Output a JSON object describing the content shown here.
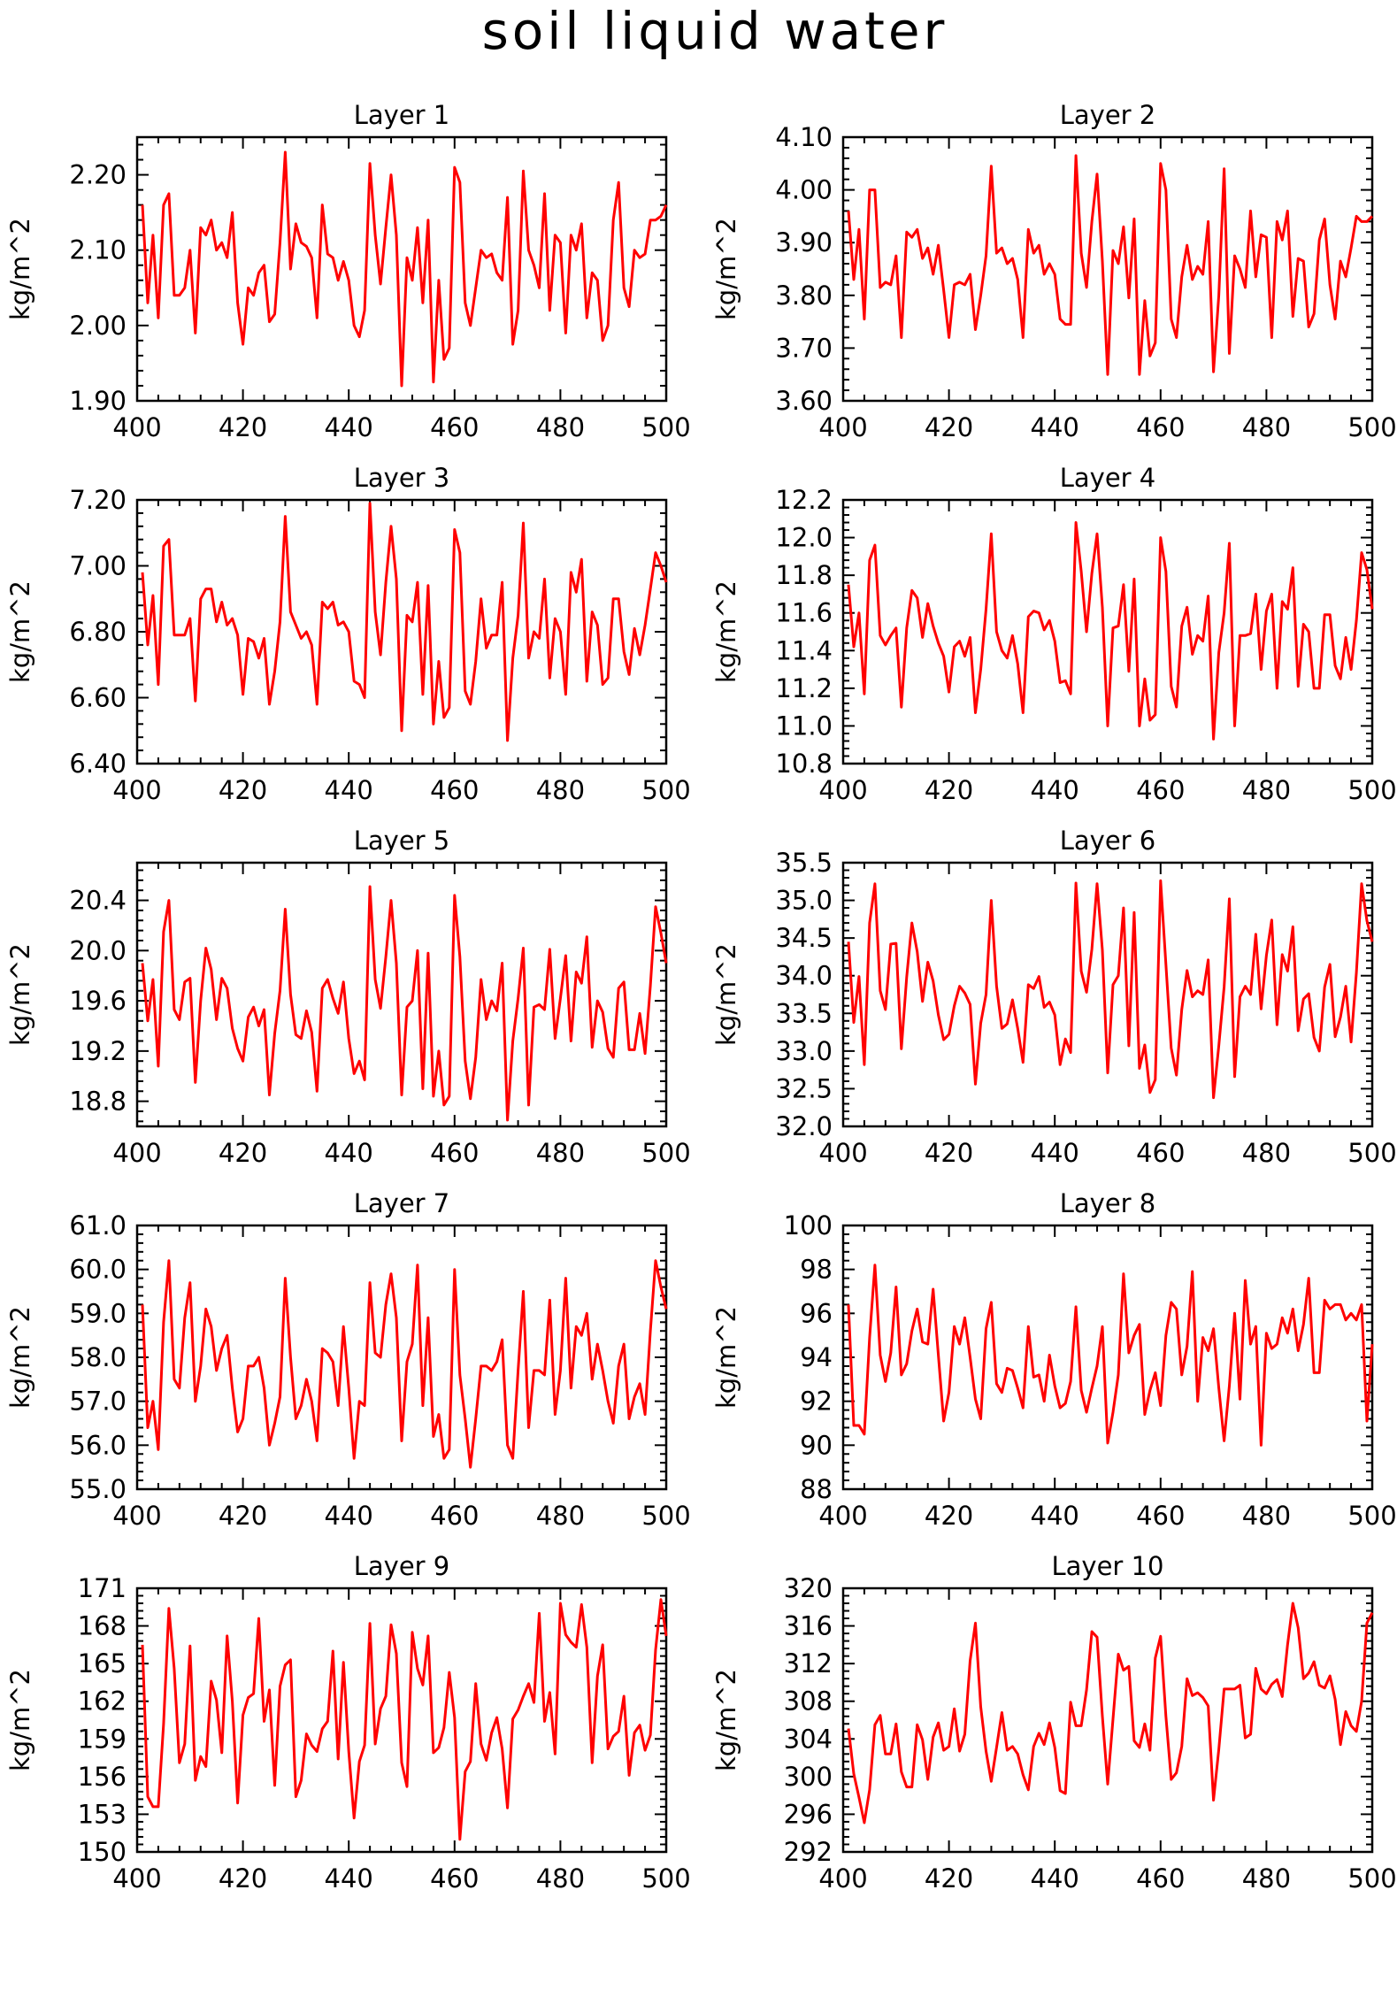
{
  "figure_title": "soil liquid water",
  "chart_data": [
    {
      "type": "line",
      "title": "Layer 1",
      "ylabel": "kg/m^2",
      "xlim": [
        400,
        500
      ],
      "x_ticks": [
        "400",
        "420",
        "440",
        "460",
        "480",
        "500"
      ],
      "ylim": [
        1.9,
        2.25
      ],
      "y_ticks": [
        "1.90",
        "2.00",
        "2.10",
        "2.20"
      ],
      "x_start": 401,
      "values": [
        2.16,
        2.03,
        2.12,
        2.01,
        2.16,
        2.175,
        2.04,
        2.04,
        2.05,
        2.1,
        1.99,
        2.13,
        2.12,
        2.14,
        2.1,
        2.11,
        2.09,
        2.15,
        2.03,
        1.975,
        2.05,
        2.04,
        2.07,
        2.08,
        2.005,
        2.015,
        2.11,
        2.23,
        2.075,
        2.135,
        2.11,
        2.105,
        2.09,
        2.01,
        2.16,
        2.095,
        2.09,
        2.06,
        2.085,
        2.06,
        2.0,
        1.985,
        2.02,
        2.215,
        2.12,
        2.055,
        2.13,
        2.2,
        2.12,
        1.92,
        2.09,
        2.06,
        2.13,
        2.03,
        2.14,
        1.925,
        2.06,
        1.955,
        1.97,
        2.21,
        2.19,
        2.03,
        2.0,
        2.05,
        2.1,
        2.09,
        2.095,
        2.07,
        2.06,
        2.17,
        1.975,
        2.02,
        2.205,
        2.1,
        2.08,
        2.05,
        2.175,
        2.02,
        2.12,
        2.11,
        1.99,
        2.12,
        2.1,
        2.135,
        2.01,
        2.07,
        2.06,
        1.98,
        2.0,
        2.14,
        2.19,
        2.05,
        2.025,
        2.1,
        2.09,
        2.095,
        2.14,
        2.14,
        2.145,
        2.16
      ]
    },
    {
      "type": "line",
      "title": "Layer 2",
      "ylabel": "kg/m^2",
      "xlim": [
        400,
        500
      ],
      "x_ticks": [
        "400",
        "420",
        "440",
        "460",
        "480",
        "500"
      ],
      "ylim": [
        3.6,
        4.1
      ],
      "y_ticks": [
        "3.60",
        "3.70",
        "3.80",
        "3.90",
        "4.00",
        "4.10"
      ],
      "x_start": 401,
      "values": [
        3.96,
        3.83,
        3.925,
        3.755,
        4.0,
        4.0,
        3.815,
        3.825,
        3.82,
        3.875,
        3.72,
        3.92,
        3.91,
        3.925,
        3.87,
        3.89,
        3.84,
        3.895,
        3.81,
        3.72,
        3.82,
        3.825,
        3.82,
        3.84,
        3.735,
        3.8,
        3.875,
        4.045,
        3.88,
        3.89,
        3.86,
        3.87,
        3.83,
        3.72,
        3.925,
        3.88,
        3.895,
        3.84,
        3.86,
        3.84,
        3.755,
        3.745,
        3.745,
        4.065,
        3.88,
        3.815,
        3.94,
        4.03,
        3.865,
        3.65,
        3.885,
        3.86,
        3.93,
        3.795,
        3.945,
        3.65,
        3.79,
        3.685,
        3.71,
        4.05,
        4.0,
        3.755,
        3.72,
        3.835,
        3.895,
        3.83,
        3.855,
        3.84,
        3.94,
        3.655,
        3.8,
        4.04,
        3.69,
        3.875,
        3.85,
        3.815,
        3.96,
        3.835,
        3.915,
        3.91,
        3.72,
        3.94,
        3.905,
        3.96,
        3.76,
        3.87,
        3.865,
        3.74,
        3.765,
        3.905,
        3.945,
        3.82,
        3.755,
        3.865,
        3.835,
        3.89,
        3.95,
        3.94,
        3.94,
        3.95
      ]
    },
    {
      "type": "line",
      "title": "Layer 3",
      "ylabel": "kg/m^2",
      "xlim": [
        400,
        500
      ],
      "x_ticks": [
        "400",
        "420",
        "440",
        "460",
        "480",
        "500"
      ],
      "ylim": [
        6.4,
        7.2
      ],
      "y_ticks": [
        "6.40",
        "6.60",
        "6.80",
        "7.00",
        "7.20"
      ],
      "x_start": 401,
      "values": [
        6.98,
        6.76,
        6.91,
        6.64,
        7.06,
        7.08,
        6.79,
        6.79,
        6.79,
        6.84,
        6.59,
        6.9,
        6.93,
        6.93,
        6.83,
        6.89,
        6.82,
        6.84,
        6.79,
        6.61,
        6.78,
        6.77,
        6.72,
        6.78,
        6.58,
        6.68,
        6.83,
        7.15,
        6.86,
        6.82,
        6.78,
        6.8,
        6.76,
        6.58,
        6.89,
        6.87,
        6.89,
        6.82,
        6.83,
        6.8,
        6.65,
        6.64,
        6.6,
        7.19,
        6.86,
        6.73,
        6.95,
        7.12,
        6.96,
        6.5,
        6.85,
        6.83,
        6.95,
        6.61,
        6.94,
        6.52,
        6.71,
        6.54,
        6.57,
        7.11,
        7.04,
        6.62,
        6.58,
        6.71,
        6.9,
        6.75,
        6.79,
        6.79,
        6.95,
        6.47,
        6.72,
        6.85,
        7.13,
        6.72,
        6.8,
        6.78,
        6.96,
        6.66,
        6.84,
        6.8,
        6.61,
        6.98,
        6.92,
        7.02,
        6.65,
        6.86,
        6.82,
        6.64,
        6.66,
        6.9,
        6.9,
        6.74,
        6.67,
        6.81,
        6.73,
        6.82,
        6.93,
        7.04,
        7.0,
        6.95
      ]
    },
    {
      "type": "line",
      "title": "Layer 4",
      "ylabel": "kg/m^2",
      "xlim": [
        400,
        500
      ],
      "x_ticks": [
        "400",
        "420",
        "440",
        "460",
        "480",
        "500"
      ],
      "ylim": [
        10.8,
        12.2
      ],
      "y_ticks": [
        "10.8",
        "11.0",
        "11.2",
        "11.4",
        "11.6",
        "11.8",
        "12.0",
        "12.2"
      ],
      "x_start": 401,
      "values": [
        11.75,
        11.42,
        11.6,
        11.17,
        11.88,
        11.96,
        11.48,
        11.43,
        11.48,
        11.52,
        11.1,
        11.52,
        11.72,
        11.68,
        11.47,
        11.65,
        11.53,
        11.44,
        11.37,
        11.18,
        11.42,
        11.45,
        11.37,
        11.47,
        11.07,
        11.3,
        11.62,
        12.02,
        11.5,
        11.4,
        11.36,
        11.48,
        11.33,
        11.07,
        11.58,
        11.61,
        11.6,
        11.51,
        11.56,
        11.45,
        11.23,
        11.24,
        11.17,
        12.08,
        11.82,
        11.5,
        11.81,
        12.02,
        11.63,
        11.0,
        11.52,
        11.53,
        11.75,
        11.29,
        11.78,
        11.0,
        11.25,
        11.03,
        11.06,
        12.0,
        11.82,
        11.21,
        11.1,
        11.53,
        11.63,
        11.38,
        11.48,
        11.45,
        11.69,
        10.93,
        11.39,
        11.6,
        11.97,
        11.0,
        11.48,
        11.48,
        11.49,
        11.7,
        11.3,
        11.61,
        11.7,
        11.2,
        11.66,
        11.62,
        11.84,
        11.21,
        11.54,
        11.5,
        11.2,
        11.2,
        11.59,
        11.59,
        11.32,
        11.25,
        11.47,
        11.3,
        11.56,
        11.92,
        11.83,
        11.62
      ]
    },
    {
      "type": "line",
      "title": "Layer 5",
      "ylabel": "kg/m^2",
      "xlim": [
        400,
        500
      ],
      "x_ticks": [
        "400",
        "420",
        "440",
        "460",
        "480",
        "500"
      ],
      "ylim": [
        18.6,
        20.7
      ],
      "y_ticks": [
        "18.8",
        "19.2",
        "19.6",
        "20.0",
        "20.4"
      ],
      "x_start": 401,
      "values": [
        19.9,
        19.44,
        19.77,
        19.08,
        20.15,
        20.4,
        19.53,
        19.45,
        19.75,
        19.78,
        18.95,
        19.6,
        20.02,
        19.85,
        19.45,
        19.78,
        19.7,
        19.38,
        19.22,
        19.12,
        19.47,
        19.55,
        19.4,
        19.53,
        18.85,
        19.34,
        19.68,
        20.33,
        19.65,
        19.33,
        19.3,
        19.52,
        19.35,
        18.88,
        19.7,
        19.77,
        19.62,
        19.5,
        19.75,
        19.3,
        19.02,
        19.12,
        18.97,
        20.51,
        19.77,
        19.54,
        19.95,
        20.4,
        19.9,
        18.85,
        19.55,
        19.6,
        20.0,
        18.9,
        19.98,
        18.84,
        19.2,
        18.77,
        18.84,
        20.44,
        19.95,
        19.12,
        18.82,
        19.15,
        19.77,
        19.45,
        19.6,
        19.52,
        19.9,
        18.65,
        19.28,
        19.62,
        20.02,
        18.77,
        19.55,
        19.57,
        19.53,
        20.01,
        19.3,
        19.62,
        19.96,
        19.28,
        19.83,
        19.74,
        20.11,
        19.23,
        19.6,
        19.51,
        19.22,
        19.15,
        19.7,
        19.75,
        19.21,
        19.21,
        19.5,
        19.18,
        19.72,
        20.35,
        20.14,
        19.9
      ]
    },
    {
      "type": "line",
      "title": "Layer 6",
      "ylabel": "kg/m^2",
      "xlim": [
        400,
        500
      ],
      "x_ticks": [
        "400",
        "420",
        "440",
        "460",
        "480",
        "500"
      ],
      "ylim": [
        32.0,
        35.5
      ],
      "y_ticks": [
        "32.0",
        "32.5",
        "33.0",
        "33.5",
        "34.0",
        "34.5",
        "35.0",
        "35.5"
      ],
      "x_start": 401,
      "values": [
        34.45,
        33.38,
        33.99,
        32.82,
        34.7,
        35.22,
        33.8,
        33.55,
        34.42,
        34.43,
        33.03,
        33.98,
        34.7,
        34.32,
        33.66,
        34.18,
        33.93,
        33.48,
        33.15,
        33.22,
        33.6,
        33.86,
        33.77,
        33.62,
        32.56,
        33.37,
        33.75,
        35.0,
        33.86,
        33.3,
        33.36,
        33.68,
        33.3,
        32.85,
        33.88,
        33.83,
        33.99,
        33.58,
        33.65,
        33.48,
        32.82,
        33.16,
        32.98,
        35.23,
        34.06,
        33.78,
        34.35,
        35.22,
        34.34,
        32.71,
        33.88,
        34.0,
        34.9,
        33.07,
        34.84,
        32.77,
        33.08,
        32.45,
        32.62,
        35.26,
        34.15,
        33.04,
        32.68,
        33.55,
        34.07,
        33.72,
        33.8,
        33.75,
        34.21,
        32.38,
        33.07,
        33.85,
        35.02,
        32.66,
        33.72,
        33.86,
        33.75,
        34.55,
        33.56,
        34.27,
        34.74,
        33.35,
        34.28,
        34.06,
        34.65,
        33.27,
        33.69,
        33.76,
        33.18,
        33.0,
        33.85,
        34.15,
        33.19,
        33.45,
        33.86,
        33.12,
        34.04,
        35.22,
        34.73,
        34.45
      ]
    },
    {
      "type": "line",
      "title": "Layer 7",
      "ylabel": "kg/m^2",
      "xlim": [
        400,
        500
      ],
      "x_ticks": [
        "400",
        "420",
        "440",
        "460",
        "480",
        "500"
      ],
      "ylim": [
        55.0,
        61.0
      ],
      "y_ticks": [
        "55.0",
        "56.0",
        "57.0",
        "58.0",
        "59.0",
        "60.0",
        "61.0"
      ],
      "x_start": 401,
      "values": [
        59.2,
        56.4,
        57.0,
        55.9,
        58.8,
        60.2,
        57.5,
        57.3,
        58.9,
        59.7,
        57.0,
        57.8,
        59.1,
        58.7,
        57.7,
        58.2,
        58.5,
        57.3,
        56.3,
        56.6,
        57.8,
        57.8,
        58.0,
        57.3,
        56.0,
        56.5,
        57.1,
        59.8,
        58.0,
        56.6,
        56.9,
        57.5,
        57.0,
        56.1,
        58.2,
        58.1,
        57.9,
        56.9,
        58.7,
        57.3,
        55.7,
        57.0,
        56.9,
        59.7,
        58.1,
        58.0,
        59.2,
        59.9,
        58.9,
        56.1,
        57.9,
        58.3,
        60.1,
        56.9,
        58.9,
        56.2,
        56.7,
        55.7,
        55.9,
        60.0,
        57.6,
        56.6,
        55.5,
        56.6,
        57.8,
        57.8,
        57.7,
        57.9,
        58.4,
        56.0,
        55.7,
        57.7,
        59.5,
        56.4,
        57.7,
        57.7,
        57.6,
        59.3,
        56.7,
        57.7,
        59.8,
        57.3,
        58.7,
        58.5,
        59.0,
        57.5,
        58.3,
        57.7,
        57.0,
        56.5,
        57.8,
        58.3,
        56.6,
        57.1,
        57.4,
        56.7,
        58.6,
        60.2,
        59.6,
        59.1
      ]
    },
    {
      "type": "line",
      "title": "Layer 8",
      "ylabel": "kg/m^2",
      "xlim": [
        400,
        500
      ],
      "x_ticks": [
        "400",
        "420",
        "440",
        "460",
        "480",
        "500"
      ],
      "ylim": [
        88,
        100
      ],
      "y_ticks": [
        "88",
        "90",
        "92",
        "94",
        "96",
        "98",
        "100"
      ],
      "x_start": 401,
      "values": [
        96.4,
        90.9,
        90.9,
        90.5,
        94.9,
        98.2,
        94.1,
        92.9,
        94.2,
        97.2,
        93.2,
        93.7,
        95.2,
        96.2,
        94.7,
        94.6,
        97.1,
        94.1,
        91.1,
        92.4,
        95.4,
        94.6,
        95.8,
        94.0,
        92.1,
        91.2,
        95.3,
        96.5,
        92.8,
        92.4,
        93.5,
        93.4,
        92.6,
        91.7,
        95.4,
        93.1,
        93.2,
        92.0,
        94.1,
        92.7,
        91.7,
        91.9,
        92.9,
        96.3,
        92.5,
        91.5,
        92.6,
        93.6,
        95.4,
        90.1,
        91.5,
        93.2,
        97.8,
        94.2,
        95.0,
        95.5,
        91.4,
        92.5,
        93.3,
        91.8,
        95.0,
        96.5,
        96.2,
        93.2,
        94.5,
        97.9,
        92.0,
        94.9,
        94.3,
        95.3,
        92.6,
        90.2,
        92.7,
        96.0,
        92.1,
        97.5,
        94.6,
        95.4,
        90.0,
        95.1,
        94.4,
        94.6,
        95.8,
        95.1,
        96.2,
        94.3,
        95.5,
        97.6,
        93.3,
        93.3,
        96.6,
        96.2,
        96.4,
        96.4,
        95.7,
        96.0,
        95.7,
        96.4,
        91.1,
        94.6
      ]
    },
    {
      "type": "line",
      "title": "Layer 9",
      "ylabel": "kg/m^2",
      "xlim": [
        400,
        500
      ],
      "x_ticks": [
        "400",
        "420",
        "440",
        "460",
        "480",
        "500"
      ],
      "ylim": [
        150,
        171
      ],
      "y_ticks": [
        "150",
        "153",
        "156",
        "159",
        "162",
        "165",
        "168",
        "171"
      ],
      "x_start": 401,
      "values": [
        166.5,
        154.4,
        153.6,
        153.6,
        160.2,
        169.4,
        164.6,
        157.1,
        158.6,
        166.4,
        155.7,
        157.6,
        156.8,
        163.6,
        162.1,
        157.9,
        167.2,
        162.0,
        153.9,
        160.9,
        162.3,
        162.6,
        168.6,
        160.4,
        162.9,
        155.3,
        163.2,
        164.9,
        165.3,
        154.4,
        155.7,
        159.4,
        158.5,
        158.0,
        159.8,
        160.4,
        166.0,
        157.4,
        165.1,
        158.0,
        152.7,
        157.2,
        158.5,
        168.2,
        158.6,
        161.4,
        162.4,
        168.1,
        165.8,
        157.1,
        155.2,
        167.5,
        164.6,
        163.3,
        167.2,
        157.9,
        158.3,
        159.9,
        164.3,
        160.7,
        151.0,
        156.4,
        157.2,
        163.4,
        158.6,
        157.3,
        159.5,
        160.7,
        158.2,
        153.5,
        160.6,
        161.3,
        162.4,
        163.4,
        161.9,
        169.0,
        160.4,
        162.7,
        157.8,
        169.8,
        167.3,
        166.7,
        166.3,
        169.7,
        166.3,
        157.1,
        164.0,
        166.5,
        158.2,
        159.2,
        159.6,
        162.4,
        156.1,
        159.5,
        160.1,
        158.1,
        159.3,
        166.1,
        170.1,
        167.2
      ]
    },
    {
      "type": "line",
      "title": "Layer 10",
      "ylabel": "kg/m^2",
      "xlim": [
        400,
        500
      ],
      "x_ticks": [
        "400",
        "420",
        "440",
        "460",
        "480",
        "500"
      ],
      "ylim": [
        292,
        320
      ],
      "y_ticks": [
        "292",
        "296",
        "300",
        "304",
        "308",
        "312",
        "316",
        "320"
      ],
      "x_start": 401,
      "values": [
        305.1,
        300.3,
        297.8,
        295.1,
        298.6,
        305.5,
        306.5,
        302.4,
        302.4,
        305.6,
        300.5,
        298.9,
        298.9,
        305.5,
        303.9,
        299.7,
        304.2,
        305.7,
        302.8,
        303.2,
        307.2,
        302.7,
        304.5,
        312.3,
        316.3,
        307.4,
        302.7,
        299.5,
        303.1,
        306.8,
        302.8,
        303.2,
        302.4,
        300.2,
        298.6,
        303.2,
        304.6,
        303.4,
        305.7,
        303.1,
        298.5,
        298.2,
        307.9,
        305.4,
        305.4,
        309.2,
        315.4,
        314.8,
        306.4,
        299.2,
        306.1,
        313.0,
        311.3,
        311.7,
        303.8,
        303.1,
        305.6,
        302.8,
        312.6,
        314.9,
        306.4,
        299.7,
        300.4,
        303.2,
        310.4,
        308.6,
        308.9,
        308.4,
        307.5,
        297.5,
        302.9,
        309.3,
        309.3,
        309.3,
        309.7,
        304.1,
        304.5,
        311.5,
        309.3,
        308.8,
        309.8,
        310.3,
        308.5,
        314.0,
        318.4,
        315.8,
        310.4,
        311.0,
        312.2,
        309.7,
        309.4,
        310.7,
        308.2,
        303.4,
        306.9,
        305.4,
        304.8,
        308.0,
        316.3,
        317.4
      ]
    }
  ]
}
